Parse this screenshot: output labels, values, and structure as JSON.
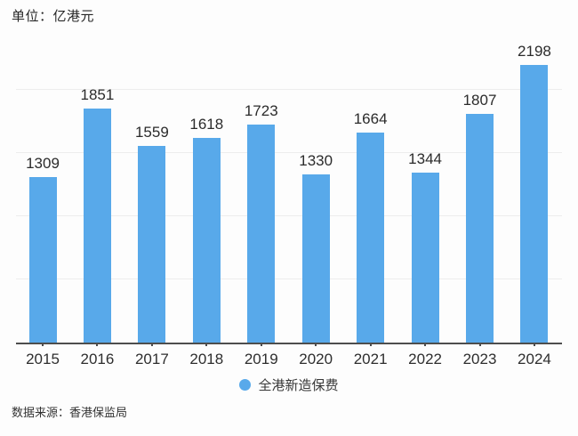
{
  "page": {
    "unit_label": "单位：亿港元",
    "source_note": "数据来源：香港保监局"
  },
  "chart_data": {
    "type": "bar",
    "title": "单位：亿港元",
    "unit": "亿港元",
    "categories": [
      "2015",
      "2016",
      "2017",
      "2018",
      "2019",
      "2020",
      "2021",
      "2022",
      "2023",
      "2024"
    ],
    "series": [
      {
        "name": "全港新造保费",
        "values": [
          1309,
          1851,
          1559,
          1618,
          1723,
          1330,
          1664,
          1344,
          1807,
          2198
        ]
      }
    ],
    "value_labels": true,
    "grid": true,
    "gridlines": [
      500,
      1000,
      1500,
      2000
    ],
    "gridline_interval": 500,
    "ylim": [
      0,
      2324
    ],
    "legend": {
      "position": "bottom",
      "entries": [
        "全港新造保费"
      ]
    },
    "source": "数据来源：香港保监局",
    "colors": {
      "bar": "#58a9ea",
      "axis": "#4d4d4d",
      "gridline": "#ededed",
      "background": "#fdfdfd"
    }
  }
}
